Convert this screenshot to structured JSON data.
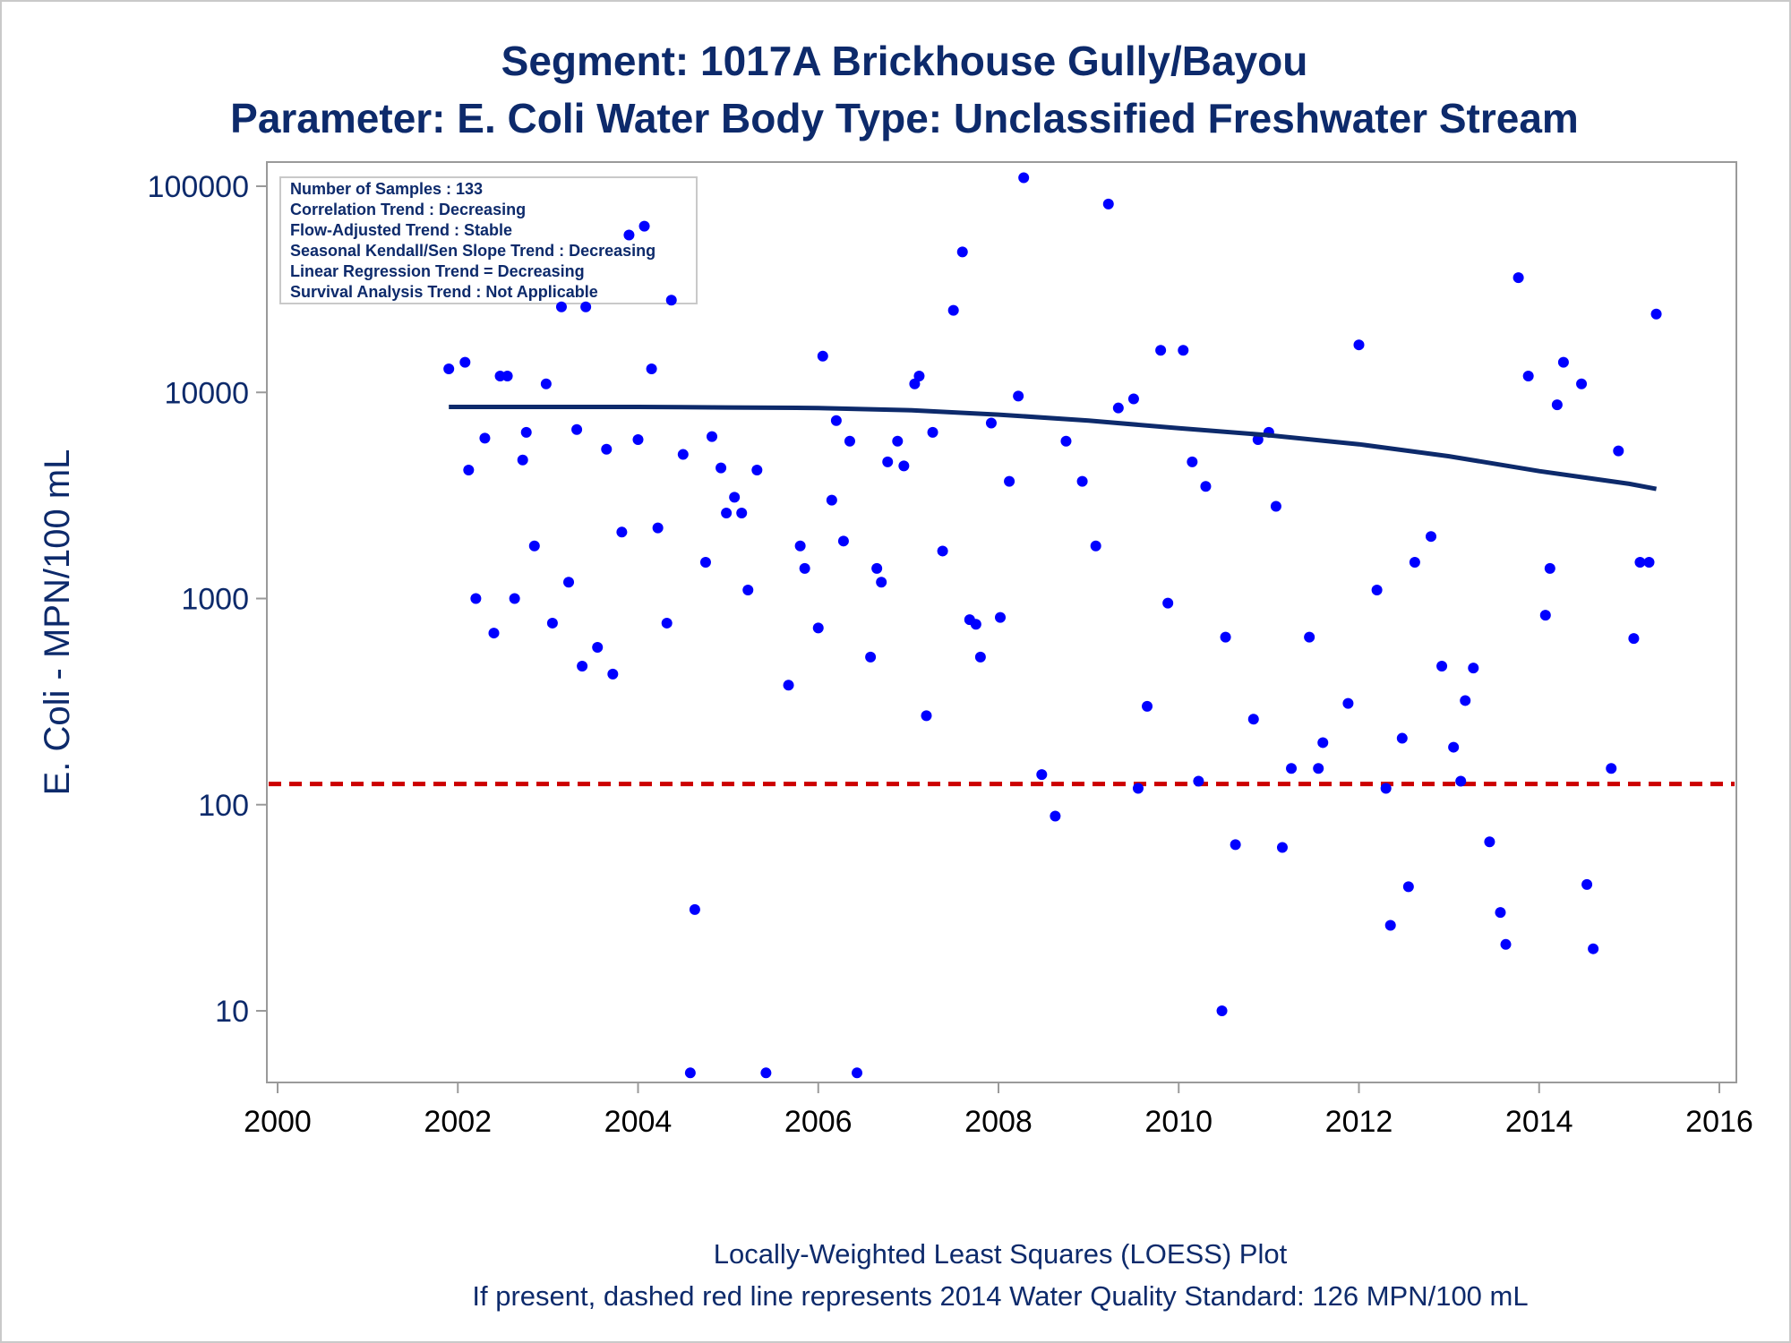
{
  "chart_data": {
    "type": "scatter",
    "title": "Segment: 1017A  Brickhouse Gully/Bayou",
    "subtitle": "Parameter: E. Coli   Water Body Type: Unclassified Freshwater Stream",
    "ylabel": "E. Coli - MPN/100 mL",
    "xlabel": "",
    "x_ticks": [
      "2000",
      "2002",
      "2004",
      "2006",
      "2008",
      "2010",
      "2012",
      "2014",
      "2016"
    ],
    "y_ticks": [
      "10",
      "100",
      "1000",
      "10000",
      "100000"
    ],
    "xlim": [
      2000,
      2016
    ],
    "ylim": [
      4.4,
      130000
    ],
    "y_scale": "log",
    "grid": false,
    "legend_position": "top-left",
    "colors": {
      "points": "#0000ff",
      "loess": "#0d2a6b",
      "standard": "#cc0000",
      "text": "#0d2a6b"
    },
    "stats_box": [
      "Number of Samples : 133",
      "Correlation Trend : Decreasing",
      "Flow-Adjusted Trend : Stable",
      "Seasonal Kendall/Sen Slope Trend : Decreasing",
      "Linear Regression Trend = Decreasing",
      "Survival Analysis Trend : Not Applicable"
    ],
    "standard_line": {
      "value": 126,
      "style": "dashed"
    },
    "loess_curve": [
      [
        2001.9,
        8500
      ],
      [
        2003.0,
        8500
      ],
      [
        2004.0,
        8500
      ],
      [
        2005.0,
        8450
      ],
      [
        2006.0,
        8400
      ],
      [
        2007.0,
        8200
      ],
      [
        2008.0,
        7800
      ],
      [
        2009.0,
        7300
      ],
      [
        2010.0,
        6700
      ],
      [
        2011.0,
        6200
      ],
      [
        2012.0,
        5600
      ],
      [
        2013.0,
        4900
      ],
      [
        2014.0,
        4150
      ],
      [
        2015.0,
        3600
      ],
      [
        2015.3,
        3400
      ]
    ],
    "points": [
      [
        2001.9,
        13000
      ],
      [
        2002.08,
        14000
      ],
      [
        2002.12,
        4200
      ],
      [
        2002.2,
        1000
      ],
      [
        2002.3,
        6000
      ],
      [
        2002.4,
        680
      ],
      [
        2002.47,
        12000
      ],
      [
        2002.55,
        12000
      ],
      [
        2002.63,
        1000
      ],
      [
        2002.72,
        4700
      ],
      [
        2002.76,
        6400
      ],
      [
        2002.85,
        1800
      ],
      [
        2002.98,
        11000
      ],
      [
        2003.05,
        760
      ],
      [
        2003.15,
        26000
      ],
      [
        2003.23,
        1200
      ],
      [
        2003.32,
        6600
      ],
      [
        2003.38,
        470
      ],
      [
        2003.42,
        26000
      ],
      [
        2003.55,
        580
      ],
      [
        2003.65,
        5300
      ],
      [
        2003.72,
        430
      ],
      [
        2003.82,
        2100
      ],
      [
        2003.9,
        58000
      ],
      [
        2004.0,
        5900
      ],
      [
        2004.07,
        64000
      ],
      [
        2004.15,
        13000
      ],
      [
        2004.22,
        2200
      ],
      [
        2004.32,
        760
      ],
      [
        2004.37,
        28000
      ],
      [
        2004.5,
        5000
      ],
      [
        2004.58,
        5
      ],
      [
        2004.63,
        31
      ],
      [
        2004.75,
        1500
      ],
      [
        2004.82,
        6100
      ],
      [
        2004.92,
        4300
      ],
      [
        2004.98,
        2600
      ],
      [
        2005.07,
        3100
      ],
      [
        2005.15,
        2600
      ],
      [
        2005.22,
        1100
      ],
      [
        2005.32,
        4200
      ],
      [
        2005.42,
        5
      ],
      [
        2005.67,
        380
      ],
      [
        2005.8,
        1800
      ],
      [
        2005.85,
        1400
      ],
      [
        2006.0,
        720
      ],
      [
        2006.05,
        15000
      ],
      [
        2006.15,
        3000
      ],
      [
        2006.2,
        7300
      ],
      [
        2006.28,
        1900
      ],
      [
        2006.35,
        5800
      ],
      [
        2006.43,
        5
      ],
      [
        2006.58,
        520
      ],
      [
        2006.65,
        1400
      ],
      [
        2006.7,
        1200
      ],
      [
        2006.77,
        4600
      ],
      [
        2006.88,
        5800
      ],
      [
        2006.95,
        4400
      ],
      [
        2007.07,
        11000
      ],
      [
        2007.12,
        12000
      ],
      [
        2007.2,
        270
      ],
      [
        2007.27,
        6400
      ],
      [
        2007.38,
        1700
      ],
      [
        2007.5,
        25000
      ],
      [
        2007.6,
        48000
      ],
      [
        2007.68,
        790
      ],
      [
        2007.75,
        750
      ],
      [
        2007.8,
        520
      ],
      [
        2007.92,
        7100
      ],
      [
        2008.02,
        810
      ],
      [
        2008.12,
        3700
      ],
      [
        2008.22,
        9600
      ],
      [
        2008.28,
        110000
      ],
      [
        2008.48,
        140
      ],
      [
        2008.63,
        88
      ],
      [
        2008.75,
        5800
      ],
      [
        2008.93,
        3700
      ],
      [
        2009.08,
        1800
      ],
      [
        2009.22,
        82000
      ],
      [
        2009.33,
        8400
      ],
      [
        2009.5,
        9300
      ],
      [
        2009.55,
        120
      ],
      [
        2009.65,
        300
      ],
      [
        2009.8,
        16000
      ],
      [
        2009.88,
        950
      ],
      [
        2010.05,
        16000
      ],
      [
        2010.15,
        4600
      ],
      [
        2010.22,
        130
      ],
      [
        2010.3,
        3500
      ],
      [
        2010.48,
        10
      ],
      [
        2010.52,
        650
      ],
      [
        2010.63,
        64
      ],
      [
        2010.83,
        260
      ],
      [
        2010.88,
        5900
      ],
      [
        2011.0,
        6400
      ],
      [
        2011.08,
        2800
      ],
      [
        2011.15,
        62
      ],
      [
        2011.25,
        150
      ],
      [
        2011.45,
        650
      ],
      [
        2011.55,
        150
      ],
      [
        2011.6,
        200
      ],
      [
        2011.88,
        310
      ],
      [
        2012.0,
        17000
      ],
      [
        2012.2,
        1100
      ],
      [
        2012.3,
        120
      ],
      [
        2012.35,
        26
      ],
      [
        2012.48,
        210
      ],
      [
        2012.55,
        40
      ],
      [
        2012.62,
        1500
      ],
      [
        2012.8,
        2000
      ],
      [
        2012.92,
        470
      ],
      [
        2013.05,
        190
      ],
      [
        2013.13,
        130
      ],
      [
        2013.18,
        320
      ],
      [
        2013.27,
        460
      ],
      [
        2013.45,
        66
      ],
      [
        2013.57,
        30
      ],
      [
        2013.63,
        21
      ],
      [
        2013.77,
        36000
      ],
      [
        2013.88,
        12000
      ],
      [
        2014.07,
        830
      ],
      [
        2014.12,
        1400
      ],
      [
        2014.2,
        8700
      ],
      [
        2014.27,
        14000
      ],
      [
        2014.47,
        11000
      ],
      [
        2014.53,
        41
      ],
      [
        2014.6,
        20
      ],
      [
        2014.8,
        150
      ],
      [
        2014.88,
        5200
      ],
      [
        2015.05,
        640
      ],
      [
        2015.12,
        1500
      ],
      [
        2015.22,
        1500
      ],
      [
        2015.3,
        24000
      ]
    ],
    "footnotes": [
      "Locally-Weighted Least Squares (LOESS) Plot",
      "If present, dashed red line represents 2014 Water Quality Standard: 126 MPN/100 mL"
    ]
  }
}
